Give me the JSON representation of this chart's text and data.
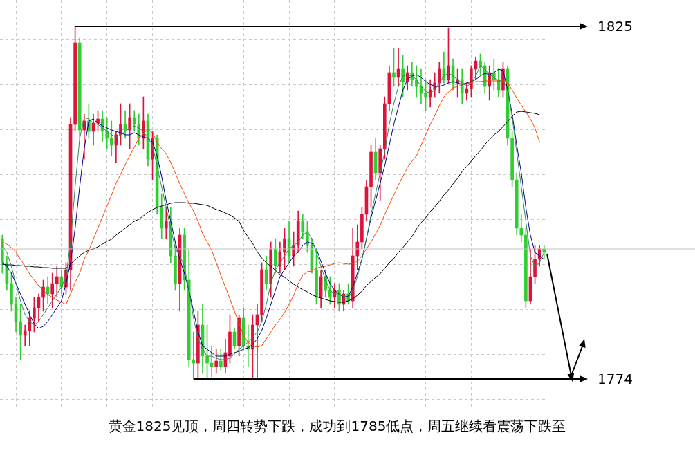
{
  "chart_data": {
    "type": "candlestick",
    "categories": [
      null,
      null,
      null,
      null,
      null,
      null,
      null,
      null,
      null,
      null,
      null,
      null,
      null,
      null,
      null,
      null,
      null,
      null,
      null,
      null,
      null,
      null,
      null,
      null,
      null,
      null,
      null,
      null,
      null,
      null,
      null,
      null,
      null,
      null,
      null,
      null,
      null,
      null,
      null,
      null,
      null,
      null,
      null,
      null,
      null,
      null,
      null,
      null,
      null,
      null,
      null,
      null,
      null,
      null,
      null,
      null,
      null,
      null,
      null,
      null,
      null,
      null,
      null,
      null,
      null,
      null,
      null,
      null,
      null,
      null,
      null,
      null,
      null,
      null,
      null,
      null,
      null,
      null,
      null,
      null,
      null,
      null,
      null,
      null,
      null,
      null,
      null,
      null,
      null,
      null,
      null,
      null,
      null,
      null,
      null,
      null,
      null,
      null,
      null,
      null,
      null,
      null,
      null,
      null,
      null,
      null,
      null,
      null,
      null,
      null,
      null,
      null,
      null,
      null,
      null,
      null,
      null,
      null,
      null,
      null
    ],
    "series": [
      {
        "type": "candlestick",
        "ohlc": [
          [
            1794.3,
            1794.8,
            1789.3,
            1790.8
          ],
          [
            1790.8,
            1791.8,
            1786.8,
            1787.8
          ],
          [
            1787.8,
            1789.3,
            1783.8,
            1784.8
          ],
          [
            1784.8,
            1785.8,
            1780.8,
            1782.3
          ],
          [
            1782.3,
            1784.8,
            1776.8,
            1780.3
          ],
          [
            1780.3,
            1781.8,
            1778.8,
            1781.0
          ],
          [
            1781.0,
            1783.8,
            1778.8,
            1782.8
          ],
          [
            1782.8,
            1785.8,
            1780.8,
            1784.3
          ],
          [
            1784.3,
            1786.3,
            1782.3,
            1785.8
          ],
          [
            1785.8,
            1788.3,
            1783.8,
            1787.3
          ],
          [
            1787.3,
            1788.8,
            1784.8,
            1786.3
          ],
          [
            1786.3,
            1789.3,
            1784.3,
            1787.8
          ],
          [
            1787.8,
            1790.3,
            1785.8,
            1788.8
          ],
          [
            1788.8,
            1789.8,
            1786.3,
            1787.3
          ],
          [
            1787.3,
            1790.8,
            1786.3,
            1789.8
          ],
          [
            1789.8,
            1811.8,
            1786.8,
            1810.8
          ],
          [
            1810.8,
            1825.0,
            1809.8,
            1822.6
          ],
          [
            1822.6,
            1823.3,
            1808.8,
            1810.0
          ],
          [
            1810.0,
            1812.3,
            1805.8,
            1811.3
          ],
          [
            1811.3,
            1813.8,
            1808.8,
            1809.8
          ],
          [
            1809.8,
            1812.3,
            1807.8,
            1811.0
          ],
          [
            1811.0,
            1812.8,
            1809.8,
            1811.6
          ],
          [
            1811.6,
            1812.8,
            1808.3,
            1809.8
          ],
          [
            1809.8,
            1811.8,
            1807.3,
            1808.8
          ],
          [
            1808.8,
            1811.3,
            1806.3,
            1807.8
          ],
          [
            1807.8,
            1809.8,
            1805.3,
            1809.3
          ],
          [
            1809.3,
            1813.8,
            1807.8,
            1810.8
          ],
          [
            1810.8,
            1812.8,
            1808.8,
            1810.0
          ],
          [
            1810.0,
            1813.8,
            1807.3,
            1811.8
          ],
          [
            1811.8,
            1812.8,
            1809.8,
            1810.8
          ],
          [
            1810.8,
            1812.3,
            1807.8,
            1808.8
          ],
          [
            1808.8,
            1814.8,
            1807.3,
            1811.3
          ],
          [
            1811.3,
            1812.3,
            1804.8,
            1805.8
          ],
          [
            1805.8,
            1809.8,
            1802.8,
            1808.8
          ],
          [
            1808.8,
            1809.3,
            1797.8,
            1798.8
          ],
          [
            1798.8,
            1800.8,
            1794.3,
            1795.8
          ],
          [
            1795.8,
            1798.8,
            1794.3,
            1796.8
          ],
          [
            1796.8,
            1798.8,
            1790.8,
            1791.8
          ],
          [
            1791.8,
            1793.8,
            1786.8,
            1787.8
          ],
          [
            1787.8,
            1795.8,
            1783.8,
            1794.8
          ],
          [
            1794.8,
            1795.8,
            1786.8,
            1788.3
          ],
          [
            1788.3,
            1792.8,
            1775.8,
            1776.8
          ],
          [
            1776.8,
            1780.8,
            1774.0,
            1776.3
          ],
          [
            1776.3,
            1783.8,
            1774.0,
            1781.8
          ],
          [
            1781.8,
            1784.8,
            1774.8,
            1777.3
          ],
          [
            1777.3,
            1781.8,
            1774.0,
            1776.3
          ],
          [
            1776.3,
            1778.8,
            1774.3,
            1775.8
          ],
          [
            1775.8,
            1778.3,
            1774.8,
            1776.6
          ],
          [
            1776.6,
            1778.3,
            1775.3,
            1775.8
          ],
          [
            1775.8,
            1779.8,
            1774.8,
            1777.8
          ],
          [
            1777.3,
            1783.3,
            1776.3,
            1780.8
          ],
          [
            1780.8,
            1781.3,
            1778.3,
            1778.8
          ],
          [
            1778.8,
            1783.3,
            1777.3,
            1782.8
          ],
          [
            1782.8,
            1784.3,
            1778.3,
            1778.8
          ],
          [
            1778.8,
            1781.8,
            1775.8,
            1778.3
          ],
          [
            1778.3,
            1783.3,
            1774.0,
            1781.8
          ],
          [
            1781.8,
            1784.8,
            1774.0,
            1783.3
          ],
          [
            1783.3,
            1790.8,
            1782.3,
            1789.8
          ],
          [
            1789.8,
            1791.8,
            1786.8,
            1787.8
          ],
          [
            1787.8,
            1793.8,
            1785.8,
            1792.8
          ],
          [
            1792.8,
            1794.3,
            1789.3,
            1790.3
          ],
          [
            1790.3,
            1793.8,
            1789.3,
            1792.3
          ],
          [
            1792.3,
            1795.8,
            1789.8,
            1794.3
          ],
          [
            1794.3,
            1796.8,
            1790.8,
            1791.8
          ],
          [
            1791.8,
            1795.3,
            1790.3,
            1793.3
          ],
          [
            1793.3,
            1798.3,
            1792.3,
            1796.8
          ],
          [
            1796.8,
            1797.8,
            1794.3,
            1795.3
          ],
          [
            1795.3,
            1796.8,
            1792.3,
            1793.3
          ],
          [
            1793.3,
            1794.3,
            1789.3,
            1789.8
          ],
          [
            1789.8,
            1792.8,
            1784.8,
            1785.8
          ],
          [
            1785.8,
            1789.8,
            1784.3,
            1788.8
          ],
          [
            1788.8,
            1789.8,
            1785.8,
            1786.8
          ],
          [
            1786.8,
            1788.8,
            1784.8,
            1785.8
          ],
          [
            1785.8,
            1787.8,
            1784.3,
            1786.8
          ],
          [
            1786.8,
            1787.8,
            1783.8,
            1784.8
          ],
          [
            1784.8,
            1786.8,
            1783.8,
            1786.3
          ],
          [
            1786.3,
            1787.8,
            1784.8,
            1785.3
          ],
          [
            1785.3,
            1795.8,
            1784.3,
            1791.8
          ],
          [
            1791.8,
            1796.3,
            1789.8,
            1793.8
          ],
          [
            1793.8,
            1798.8,
            1792.8,
            1797.8
          ],
          [
            1797.8,
            1802.8,
            1796.8,
            1801.8
          ],
          [
            1801.8,
            1807.8,
            1798.8,
            1806.8
          ],
          [
            1806.8,
            1808.8,
            1802.8,
            1803.8
          ],
          [
            1803.8,
            1807.8,
            1799.8,
            1807.3
          ],
          [
            1807.3,
            1814.8,
            1805.8,
            1813.8
          ],
          [
            1813.8,
            1819.3,
            1812.8,
            1818.3
          ],
          [
            1818.3,
            1821.8,
            1816.3,
            1817.6
          ],
          [
            1817.6,
            1821.8,
            1816.3,
            1818.8
          ],
          [
            1818.8,
            1820.8,
            1814.8,
            1817.0
          ],
          [
            1817.0,
            1819.3,
            1815.8,
            1818.3
          ],
          [
            1818.3,
            1819.8,
            1816.3,
            1817.3
          ],
          [
            1817.3,
            1819.3,
            1814.8,
            1816.3
          ],
          [
            1816.3,
            1818.8,
            1813.8,
            1815.3
          ],
          [
            1815.3,
            1817.3,
            1812.8,
            1814.8
          ],
          [
            1814.8,
            1817.3,
            1813.3,
            1815.8
          ],
          [
            1815.8,
            1818.3,
            1814.8,
            1816.8
          ],
          [
            1816.8,
            1819.8,
            1815.3,
            1818.8
          ],
          [
            1818.8,
            1821.3,
            1816.8,
            1817.3
          ],
          [
            1817.3,
            1824.8,
            1816.8,
            1819.3
          ],
          [
            1819.3,
            1820.3,
            1815.8,
            1816.8
          ],
          [
            1816.8,
            1818.8,
            1814.8,
            1817.3
          ],
          [
            1817.3,
            1818.8,
            1813.8,
            1815.3
          ],
          [
            1815.3,
            1816.8,
            1814.3,
            1816.0
          ],
          [
            1816.0,
            1819.3,
            1814.8,
            1818.8
          ],
          [
            1818.8,
            1820.6,
            1817.3,
            1820.0
          ],
          [
            1820.0,
            1821.0,
            1818.0,
            1819.3
          ],
          [
            1819.3,
            1819.8,
            1815.3,
            1816.3
          ],
          [
            1816.3,
            1819.3,
            1814.3,
            1818.3
          ],
          [
            1818.3,
            1820.3,
            1815.8,
            1817.3
          ],
          [
            1817.3,
            1818.8,
            1814.8,
            1815.8
          ],
          [
            1815.8,
            1819.8,
            1814.8,
            1818.8
          ],
          [
            1818.8,
            1819.3,
            1807.8,
            1808.8
          ],
          [
            1808.8,
            1809.8,
            1801.8,
            1802.8
          ],
          [
            1802.8,
            1803.8,
            1794.8,
            1795.8
          ],
          [
            1795.8,
            1797.8,
            1793.8,
            1794.8
          ],
          [
            1794.8,
            1795.8,
            1784.3,
            1785.3
          ],
          [
            1785.3,
            1792.8,
            1784.8,
            1788.8
          ],
          [
            1788.8,
            1793.3,
            1787.8,
            1791.3
          ],
          [
            1791.3,
            1793.3,
            1790.3,
            1792.8
          ],
          [
            1792.8,
            1793.3,
            1791.3,
            1792.3
          ]
        ],
        "colors": [
          "#32cd32",
          "#32cd32",
          "#32cd32",
          "#32cd32",
          "#32cd32",
          "#dc143c",
          "#dc143c",
          "#dc143c",
          "#dc143c",
          "#dc143c",
          "#32cd32",
          "#dc143c",
          "#dc143c",
          "#32cd32",
          "#dc143c",
          "#dc143c",
          "#dc143c",
          "#32cd32",
          "#dc143c",
          "#32cd32",
          "#dc143c",
          "#dc143c",
          "#32cd32",
          "#32cd32",
          "#32cd32",
          "#dc143c",
          "#dc143c",
          "#32cd32",
          "#dc143c",
          "#32cd32",
          "#32cd32",
          "#dc143c",
          "#32cd32",
          "#dc143c",
          "#32cd32",
          "#32cd32",
          "#dc143c",
          "#32cd32",
          "#32cd32",
          "#dc143c",
          "#32cd32",
          "#32cd32",
          "#32cd32",
          "#dc143c",
          "#32cd32",
          "#32cd32",
          "#32cd32",
          "#dc143c",
          "#32cd32",
          "#dc143c",
          "#dc143c",
          "#32cd32",
          "#dc143c",
          "#32cd32",
          "#32cd32",
          "#dc143c",
          "#dc143c",
          "#dc143c",
          "#32cd32",
          "#dc143c",
          "#32cd32",
          "#dc143c",
          "#dc143c",
          "#32cd32",
          "#dc143c",
          "#dc143c",
          "#32cd32",
          "#32cd32",
          "#32cd32",
          "#32cd32",
          "#dc143c",
          "#32cd32",
          "#32cd32",
          "#dc143c",
          "#32cd32",
          "#dc143c",
          "#32cd32",
          "#dc143c",
          "#dc143c",
          "#dc143c",
          "#dc143c",
          "#dc143c",
          "#32cd32",
          "#dc143c",
          "#dc143c",
          "#dc143c",
          "#32cd32",
          "#dc143c",
          "#32cd32",
          "#dc143c",
          "#32cd32",
          "#32cd32",
          "#32cd32",
          "#32cd32",
          "#dc143c",
          "#dc143c",
          "#dc143c",
          "#32cd32",
          "#dc143c",
          "#32cd32",
          "#dc143c",
          "#32cd32",
          "#dc143c",
          "#dc143c",
          "#dc143c",
          "#32cd32",
          "#32cd32",
          "#dc143c",
          "#32cd32",
          "#32cd32",
          "#dc143c",
          "#32cd32",
          "#32cd32",
          "#32cd32",
          "#32cd32",
          "#32cd32",
          "#dc143c",
          "#dc143c",
          "#dc143c",
          "#32cd32"
        ]
      },
      {
        "type": "line",
        "color": "#2e8b57",
        "values": [
          1793.3,
          1792.3,
          1790.3,
          1787.8,
          1785.3,
          1783.3,
          1782.3,
          1781.8,
          1782.3,
          1783.3,
          1784.3,
          1785.3,
          1786.3,
          1787.3,
          1788.8,
          1793.8,
          1801.8,
          1808.8,
          1811.8,
          1811.6,
          1811.0,
          1810.8,
          1810.3,
          1809.8,
          1809.3,
          1809.0,
          1809.3,
          1809.8,
          1810.3,
          1810.6,
          1810.3,
          1809.8,
          1808.8,
          1807.8,
          1804.8,
          1801.8,
          1798.8,
          1795.8,
          1792.8,
          1791.8,
          1790.3,
          1786.8,
          1782.8,
          1779.8,
          1778.3,
          1777.3,
          1777.3,
          1777.0,
          1776.8,
          1776.8,
          1777.0,
          1777.6,
          1778.3,
          1778.8,
          1779.3,
          1780.0,
          1780.8,
          1782.3,
          1784.8,
          1787.8,
          1789.8,
          1790.8,
          1791.8,
          1792.8,
          1793.3,
          1793.8,
          1794.8,
          1795.3,
          1794.3,
          1792.3,
          1790.3,
          1788.3,
          1786.8,
          1786.3,
          1786.3,
          1786.0,
          1785.8,
          1786.8,
          1788.8,
          1791.3,
          1794.3,
          1797.8,
          1800.8,
          1803.8,
          1806.8,
          1810.8,
          1813.8,
          1816.3,
          1817.8,
          1818.0,
          1817.8,
          1817.3,
          1816.3,
          1815.6,
          1815.3,
          1815.8,
          1816.8,
          1817.8,
          1818.3,
          1817.8,
          1817.3,
          1816.8,
          1816.3,
          1816.8,
          1817.8,
          1819.3,
          1818.8,
          1818.0,
          1817.6,
          1817.0,
          1817.3,
          1815.8,
          1811.8,
          1806.8,
          1801.8,
          1796.8,
          1791.8,
          1790.3,
          1790.8,
          1792.3
        ]
      },
      {
        "type": "line",
        "color": "#00008b",
        "values": [
          1790.8,
          1790.3,
          1789.3,
          1787.8,
          1786.3,
          1784.8,
          1783.3,
          1782.0,
          1781.3,
          1781.6,
          1782.3,
          1783.3,
          1784.3,
          1785.3,
          1787.8,
          1790.8,
          1795.8,
          1801.8,
          1807.3,
          1811.3,
          1811.6,
          1811.0,
          1810.6,
          1810.3,
          1810.0,
          1809.8,
          1809.6,
          1809.3,
          1809.3,
          1809.6,
          1809.3,
          1809.0,
          1808.8,
          1808.3,
          1806.3,
          1803.3,
          1799.8,
          1796.8,
          1793.8,
          1791.3,
          1789.3,
          1786.8,
          1783.8,
          1780.8,
          1778.8,
          1778.3,
          1777.8,
          1777.3,
          1777.3,
          1777.3,
          1777.6,
          1777.8,
          1778.0,
          1778.3,
          1778.5,
          1779.0,
          1779.8,
          1781.0,
          1782.8,
          1784.8,
          1786.8,
          1788.8,
          1789.8,
          1790.8,
          1791.8,
          1792.3,
          1793.3,
          1793.8,
          1793.6,
          1792.8,
          1791.0,
          1789.3,
          1787.8,
          1786.8,
          1786.3,
          1785.8,
          1786.0,
          1787.3,
          1789.3,
          1791.3,
          1794.3,
          1797.3,
          1799.8,
          1802.3,
          1804.8,
          1807.8,
          1810.8,
          1813.3,
          1815.8,
          1817.3,
          1817.8,
          1818.0,
          1817.6,
          1817.0,
          1816.6,
          1816.3,
          1816.3,
          1816.5,
          1816.8,
          1817.0,
          1816.8,
          1816.6,
          1816.8,
          1817.0,
          1817.3,
          1817.8,
          1818.2,
          1818.0,
          1818.3,
          1818.8,
          1818.6,
          1815.8,
          1812.3,
          1807.8,
          1803.8,
          1798.8,
          1794.8,
          1792.3,
          1791.8,
          1791.3
        ]
      },
      {
        "type": "line",
        "color": "#ff4500",
        "values": [
          1793.8,
          1793.5,
          1793.0,
          1792.3,
          1791.3,
          1790.3,
          1789.2,
          1788.3,
          1787.5,
          1786.8,
          1786.2,
          1785.8,
          1785.4,
          1785.1,
          1784.8,
          1786.3,
          1788.0,
          1789.3,
          1791.3,
          1792.6,
          1794.2,
          1795.8,
          1797.4,
          1799.0,
          1800.6,
          1802.3,
          1803.6,
          1805.0,
          1806.3,
          1807.5,
          1808.8,
          1809.5,
          1810.1,
          1809.6,
          1808.3,
          1807.3,
          1806.6,
          1805.3,
          1803.8,
          1802.2,
          1800.8,
          1799.4,
          1798.3,
          1796.8,
          1795.0,
          1793.8,
          1792.6,
          1790.8,
          1789.0,
          1787.3,
          1785.6,
          1783.8,
          1782.1,
          1780.3,
          1779.3,
          1778.8,
          1778.6,
          1778.8,
          1779.8,
          1780.8,
          1781.8,
          1782.6,
          1783.6,
          1784.8,
          1786.1,
          1787.8,
          1789.0,
          1789.5,
          1789.6,
          1790.0,
          1790.2,
          1790.3,
          1790.5,
          1790.7,
          1790.8,
          1790.7,
          1790.6,
          1790.7,
          1791.0,
          1791.8,
          1792.8,
          1793.8,
          1795.0,
          1796.2,
          1797.8,
          1799.2,
          1800.6,
          1802.0,
          1803.3,
          1804.6,
          1805.5,
          1806.3,
          1807.8,
          1809.3,
          1810.8,
          1812.1,
          1813.5,
          1814.8,
          1815.5,
          1816.1,
          1816.3,
          1816.5,
          1816.7,
          1816.8,
          1817.0,
          1817.0,
          1817.1,
          1817.1,
          1817.1,
          1817.1,
          1817.1,
          1816.8,
          1815.8,
          1814.6,
          1813.6,
          1812.6,
          1811.6,
          1810.3,
          1808.3,
          null
        ]
      },
      {
        "type": "line",
        "color": "#000000",
        "values": [
          1790.6,
          1790.5,
          1790.5,
          1790.4,
          1790.4,
          1790.3,
          1790.3,
          1790.2,
          1790.2,
          1790.1,
          1790.1,
          1790.0,
          1790.0,
          1790.0,
          1790.0,
          1790.6,
          1791.2,
          1791.8,
          1792.3,
          1792.6,
          1792.8,
          1793.1,
          1793.5,
          1793.9,
          1794.2,
          1794.8,
          1795.3,
          1795.8,
          1796.3,
          1796.8,
          1797.1,
          1797.6,
          1798.1,
          1798.5,
          1798.8,
          1799.0,
          1799.2,
          1799.4,
          1799.5,
          1799.5,
          1799.5,
          1799.4,
          1799.4,
          1799.3,
          1799.2,
          1799.1,
          1798.8,
          1798.5,
          1798.3,
          1798.0,
          1797.7,
          1797.3,
          1796.8,
          1795.5,
          1794.5,
          1793.6,
          1792.4,
          1791.5,
          1790.8,
          1790.3,
          1789.7,
          1789.1,
          1788.7,
          1788.2,
          1787.7,
          1787.3,
          1786.9,
          1786.6,
          1786.2,
          1785.9,
          1785.7,
          1785.5,
          1785.3,
          1785.2,
          1785.1,
          1785.1,
          1785.3,
          1785.6,
          1786.1,
          1786.7,
          1787.5,
          1788.1,
          1788.7,
          1789.2,
          1790.0,
          1790.8,
          1791.4,
          1792.3,
          1793.0,
          1793.8,
          1794.6,
          1795.7,
          1796.6,
          1797.3,
          1798.2,
          1798.9,
          1799.7,
          1800.6,
          1801.3,
          1802.2,
          1803.0,
          1804.0,
          1804.7,
          1805.5,
          1806.3,
          1807.0,
          1807.9,
          1808.6,
          1809.3,
          1809.8,
          1810.5,
          1811.2,
          1812.0,
          1812.6,
          1812.7,
          1812.6,
          1812.5,
          1812.4,
          1812.2,
          null
        ]
      }
    ],
    "ylim": [
      1769.8,
      1828.8
    ],
    "yticks": [
      {
        "value": 1823.1,
        "label": null
      },
      {
        "value": 1816.6,
        "label": null
      },
      {
        "value": 1810.1,
        "label": null
      },
      {
        "value": 1803.6,
        "label": null
      },
      {
        "value": 1797.1,
        "label": null
      },
      {
        "value": 1790.6,
        "label": null
      },
      {
        "value": 1784.1,
        "label": null
      },
      {
        "value": 1777.6,
        "label": null
      },
      {
        "value": 1771.1,
        "label": null
      }
    ],
    "grid": true,
    "tick_labels": false,
    "ref_lines": [
      {
        "axis": "y",
        "value": 1825,
        "label": "1825"
      },
      {
        "axis": "y",
        "value": 1774,
        "label": "1774"
      },
      {
        "axis": "y",
        "value": 1792.8,
        "color": "#c0c0c0"
      }
    ],
    "annotations": [
      "黄金1825见顶，周四转势下跌，成功到1785低点，周五继续看震荡下跌至"
    ]
  }
}
